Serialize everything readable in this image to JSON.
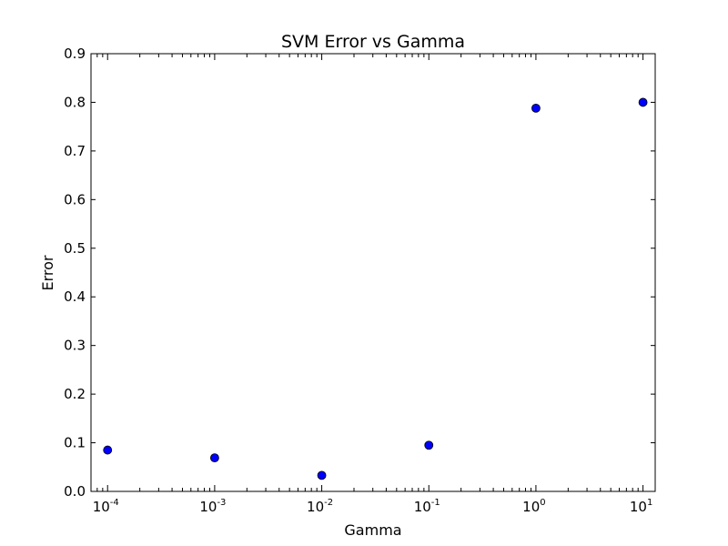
{
  "chart_data": {
    "type": "scatter",
    "title": "SVM Error vs Gamma",
    "xlabel": "Gamma",
    "ylabel": "Error",
    "xscale": "log",
    "xlim": [
      7e-05,
      13
    ],
    "ylim": [
      0.0,
      0.9
    ],
    "grid": false,
    "marker_color": "#0000ff",
    "marker_edge_color": "#000000",
    "yticks": [
      0.0,
      0.1,
      0.2,
      0.3,
      0.4,
      0.5,
      0.6,
      0.7,
      0.8,
      0.9
    ],
    "ytick_labels": [
      "0.0",
      "0.1",
      "0.2",
      "0.3",
      "0.4",
      "0.5",
      "0.6",
      "0.7",
      "0.8",
      "0.9"
    ],
    "xticks": [
      {
        "value": 0.0001,
        "base": "10",
        "exp": "-4"
      },
      {
        "value": 0.001,
        "base": "10",
        "exp": "-3"
      },
      {
        "value": 0.01,
        "base": "10",
        "exp": "-2"
      },
      {
        "value": 0.1,
        "base": "10",
        "exp": "-1"
      },
      {
        "value": 1,
        "base": "10",
        "exp": "0"
      },
      {
        "value": 10,
        "base": "10",
        "exp": "1"
      }
    ],
    "series": [
      {
        "x": [
          0.0001,
          0.001,
          0.01,
          0.1,
          1,
          10
        ],
        "y": [
          0.085,
          0.069,
          0.033,
          0.095,
          0.788,
          0.8
        ]
      }
    ]
  }
}
